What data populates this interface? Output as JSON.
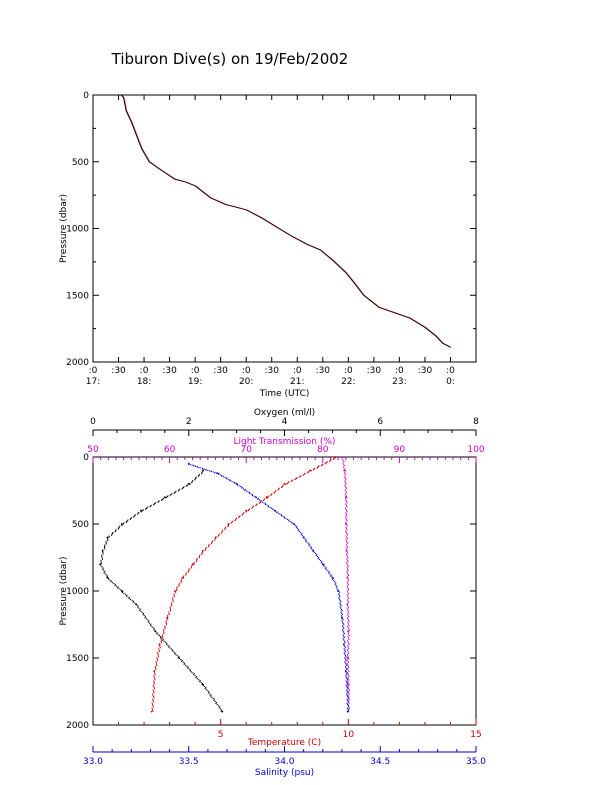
{
  "title": "Tiburon Dive(s) on 19/Feb/2002",
  "chart_data": [
    {
      "type": "line",
      "xlabel": "Time (UTC)",
      "ylabel": "Pressure (dbar)",
      "xlim": [
        17.0,
        24.5
      ],
      "ylim": [
        2000,
        0
      ],
      "x_tick_labels_top": [
        ":0",
        ":30",
        ":0",
        ":30",
        ":0",
        ":30",
        ":0",
        ":30",
        ":0",
        ":30",
        ":0",
        ":30",
        ":0",
        ":30",
        ":0"
      ],
      "x_tick_labels_bottom": [
        "17:",
        "",
        "18:",
        "",
        "19:",
        "",
        "20:",
        "",
        "21:",
        "",
        "22:",
        "",
        "23:",
        "",
        "0:"
      ],
      "y_ticks": [
        0,
        500,
        1000,
        1500,
        2000
      ],
      "series": [
        {
          "color": "#000000",
          "x": [
            17.55,
            17.6,
            17.65,
            17.75,
            17.85,
            17.95,
            18.1,
            18.25,
            18.4,
            18.6,
            18.8,
            19.0,
            19.3,
            19.6,
            20.0,
            20.3,
            20.6,
            20.9,
            21.2,
            21.45,
            21.7,
            21.95,
            22.1,
            22.3,
            22.6,
            22.9,
            23.2,
            23.5,
            23.7,
            23.85,
            24.0
          ],
          "y": [
            0,
            20,
            120,
            200,
            300,
            400,
            500,
            540,
            580,
            630,
            650,
            680,
            770,
            820,
            860,
            920,
            990,
            1060,
            1120,
            1160,
            1240,
            1330,
            1400,
            1500,
            1590,
            1630,
            1670,
            1740,
            1800,
            1860,
            1890
          ]
        }
      ]
    },
    {
      "type": "scatter",
      "ylabel": "Pressure (dbar)",
      "ylim": [
        2000,
        0
      ],
      "y_ticks": [
        0,
        500,
        1000,
        1500,
        2000
      ],
      "axes": {
        "oxygen": {
          "label": "Oxygen (ml/l)",
          "lim": [
            0,
            8
          ],
          "ticks": [
            0,
            2,
            4,
            6,
            8
          ],
          "color": "#000000"
        },
        "light_transmission": {
          "label": "Light Transmission (%)",
          "lim": [
            50,
            100
          ],
          "ticks": [
            50,
            60,
            70,
            80,
            90,
            100
          ],
          "color": "#cc00cc"
        },
        "temperature": {
          "label": "Temperature (C)",
          "lim": [
            0,
            15
          ],
          "ticks": [
            5,
            10,
            15
          ],
          "color": "#cc0000"
        },
        "salinity": {
          "label": "Salinity (psu)",
          "lim": [
            33.0,
            35.0
          ],
          "ticks": [
            "33.0",
            "33.5",
            "34.0",
            "34.5",
            "35.0"
          ],
          "color": "#0000cc"
        }
      },
      "series": [
        {
          "axis": "oxygen",
          "color": "#000000",
          "x": [
            2.3,
            2.0,
            1.5,
            1.0,
            0.6,
            0.3,
            0.2,
            0.15,
            0.3,
            0.6,
            0.9,
            1.3,
            1.8,
            2.3,
            2.7
          ],
          "y": [
            100,
            200,
            300,
            400,
            500,
            600,
            700,
            800,
            900,
            1000,
            1100,
            1300,
            1500,
            1700,
            1900
          ]
        },
        {
          "axis": "light_transmission",
          "color": "#cc00cc",
          "x": [
            82.5,
            82.8,
            83.0,
            83.0,
            83.1,
            83.2,
            83.2,
            83.3,
            83.2,
            83.3,
            83.3
          ],
          "y": [
            0,
            100,
            300,
            500,
            700,
            900,
            1100,
            1300,
            1500,
            1700,
            1900
          ]
        },
        {
          "axis": "temperature",
          "color": "#cc0000",
          "x": [
            9.5,
            8.5,
            7.5,
            6.8,
            6.0,
            5.3,
            4.8,
            4.3,
            3.9,
            3.5,
            3.2,
            2.9,
            2.6,
            2.4,
            2.3
          ],
          "y": [
            0,
            100,
            200,
            300,
            400,
            500,
            600,
            700,
            800,
            900,
            1000,
            1200,
            1400,
            1600,
            1900
          ]
        },
        {
          "axis": "salinity",
          "color": "#0000cc",
          "x": [
            33.5,
            33.65,
            33.75,
            33.85,
            33.95,
            34.05,
            34.1,
            34.15,
            34.2,
            34.25,
            34.28,
            34.3,
            34.31,
            34.32,
            34.33
          ],
          "y": [
            50,
            120,
            200,
            300,
            400,
            500,
            600,
            700,
            800,
            900,
            1000,
            1200,
            1400,
            1600,
            1900
          ]
        }
      ]
    }
  ]
}
